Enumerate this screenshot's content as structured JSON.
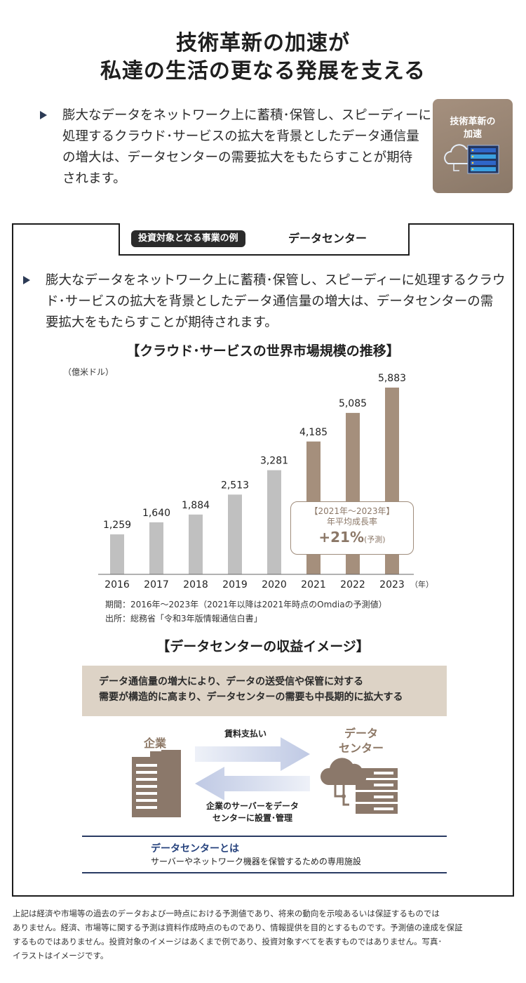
{
  "title": {
    "line1": "技術革新の加速が",
    "line2": "私達の生活の更なる発展を支える"
  },
  "intro": {
    "lines": [
      "膨大なデータをネットワーク上に蓄積･保管し、スピーディーに",
      "処理するクラウド･サービスの拡大を背景としたデータ通信量",
      "の増大は、データセンターの需要拡大をもたらすことが期待",
      "されます。"
    ]
  },
  "tag": {
    "line1": "技術革新の",
    "line2": "加速",
    "icon": "cloud-server-icon"
  },
  "case": {
    "pill": "投資対象となる事業の例",
    "name": "データセンター"
  },
  "case_text": {
    "lines": [
      "膨大なデータをネットワーク上に蓄積･保管し、スピーディーに処理するクラウ",
      "ド･サービスの拡大を背景としたデータ通信量の増大は、データセンターの需",
      "要拡大をもたらすことが期待されます。"
    ]
  },
  "chart_title": "【クラウド･サービスの世界市場規模の推移】",
  "chart_data": {
    "type": "bar",
    "title": "【クラウド･サービスの世界市場規模の推移】",
    "ylabel": "（億米ドル）",
    "xlabel": "（年）",
    "categories": [
      "2016",
      "2017",
      "2018",
      "2019",
      "2020",
      "2021",
      "2022",
      "2023"
    ],
    "values": [
      1259,
      1640,
      1884,
      2513,
      3281,
      4185,
      5085,
      5883
    ],
    "value_labels": [
      "1,259",
      "1,640",
      "1,884",
      "2,513",
      "3,281",
      "4,185",
      "5,085",
      "5,883"
    ],
    "ylim": [
      0,
      6500
    ],
    "grid": false,
    "legend": "none",
    "colors": {
      "actual": "#c0c0c0",
      "forecast": "#a58f7c"
    },
    "forecast_from_index": 5
  },
  "callout": {
    "line1": "【2021年～2023年】",
    "line2": "年平均成長率",
    "value": "+21%",
    "note": "(予測)"
  },
  "notes": {
    "period": "期間：2016年～2023年（2021年以降は2021年時点のOmdiaの予測値）",
    "source": "出所：総務省「令和3年版情報通信白書」"
  },
  "revenue_title": "【データセンターの収益イメージ】",
  "revenue_box": {
    "line1": "データ通信量の増大により、データの送受信や保管に対する",
    "line2": "需要が構造的に高まり、データセンターの需要も中長期的に拡大する"
  },
  "diagram": {
    "company": "企業",
    "datacenter_line1": "データ",
    "datacenter_line2": "センター",
    "fee": "賃料支払い",
    "server_line1": "企業のサーバーをデータ",
    "server_line2": "センターに設置･管理",
    "company_icon": "building-icon",
    "datacenter_icon": "cloud-server-icon"
  },
  "definition": {
    "term": "データセンターとは",
    "desc": "サーバーやネットワーク機器を保管するための専用施設"
  },
  "disclaimer": {
    "lines": [
      "上記は経済や市場等の過去のデータおよび一時点における予測値であり、将来の動向を示唆あるいは保証するものでは",
      "ありません。経済、市場等に関する予測は資料作成時点のものであり、情報提供を目的とするものです。予測値の達成を保証",
      "するものではありません。投資対象のイメージはあくまで例であり、投資対象すべてを表すものではありません。写真･",
      "イラストはイメージです。"
    ]
  }
}
